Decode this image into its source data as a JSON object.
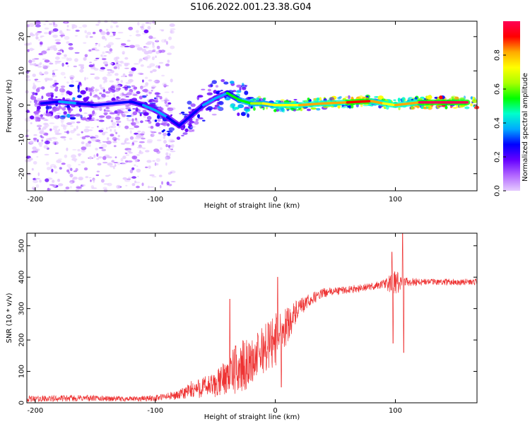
{
  "title": "S106.2022.001.23.38.G04",
  "chart_data": [
    {
      "type": "heatmap",
      "xlabel": "Height of straight line (km)",
      "ylabel": "Frequency (Hz)",
      "xlim": [
        -207,
        168
      ],
      "ylim": [
        -25,
        24.5
      ],
      "x_ticks": [
        -200,
        -100,
        0,
        100
      ],
      "y_ticks": [
        -20,
        -10,
        0,
        10,
        20
      ],
      "grid": false,
      "colorbar": {
        "label": "Normalized spectral amplitude",
        "range": [
          0,
          1
        ],
        "ticks": [
          0.0,
          0.2,
          0.4,
          0.6,
          0.8
        ],
        "colormap": [
          "#e6ccff",
          "#b266ff",
          "#6600ff",
          "#0000ff",
          "#00aaff",
          "#00ffcc",
          "#00ff00",
          "#aaff00",
          "#ffff00",
          "#ffaa00",
          "#ff0000",
          "#ff0055"
        ]
      },
      "ridge": [
        {
          "x": -195,
          "y": 0.5,
          "a": 0.25
        },
        {
          "x": -180,
          "y": 1.0,
          "a": 0.35
        },
        {
          "x": -165,
          "y": 0.5,
          "a": 0.4
        },
        {
          "x": -150,
          "y": 0.0,
          "a": 0.2
        },
        {
          "x": -120,
          "y": 1.0,
          "a": 0.3
        },
        {
          "x": -110,
          "y": 0.0,
          "a": 0.35
        },
        {
          "x": -100,
          "y": -1.5,
          "a": 0.35
        },
        {
          "x": -90,
          "y": -3.5,
          "a": 0.35
        },
        {
          "x": -80,
          "y": -6.0,
          "a": 0.3
        },
        {
          "x": -70,
          "y": -3.0,
          "a": 0.3
        },
        {
          "x": -60,
          "y": 0.0,
          "a": 0.35
        },
        {
          "x": -50,
          "y": 2.0,
          "a": 0.35
        },
        {
          "x": -40,
          "y": 3.5,
          "a": 0.45
        },
        {
          "x": -30,
          "y": 1.5,
          "a": 0.55
        },
        {
          "x": -20,
          "y": 0.5,
          "a": 0.6
        },
        {
          "x": -10,
          "y": 0.5,
          "a": 0.65
        },
        {
          "x": 0,
          "y": 0.0,
          "a": 0.7
        },
        {
          "x": 20,
          "y": 0.0,
          "a": 0.75
        },
        {
          "x": 40,
          "y": 0.5,
          "a": 0.8
        },
        {
          "x": 60,
          "y": 0.8,
          "a": 0.85
        },
        {
          "x": 80,
          "y": 1.2,
          "a": 0.9
        },
        {
          "x": 90,
          "y": 0.5,
          "a": 0.7
        },
        {
          "x": 100,
          "y": 0.0,
          "a": 0.75
        },
        {
          "x": 120,
          "y": 0.8,
          "a": 0.9
        },
        {
          "x": 140,
          "y": 0.8,
          "a": 0.95
        },
        {
          "x": 160,
          "y": 0.8,
          "a": 0.95
        }
      ]
    },
    {
      "type": "line",
      "xlabel": "Height of straight line (km)",
      "ylabel": "SNR (10 * v/v)",
      "xlim": [
        -207,
        168
      ],
      "ylim": [
        0,
        540
      ],
      "x_ticks": [
        -200,
        -100,
        0,
        100
      ],
      "y_ticks": [
        0,
        100,
        200,
        300,
        400,
        500
      ],
      "grid": false,
      "series": [
        {
          "color": "#ee3333",
          "envelope": [
            {
              "x": -207,
              "y": 12,
              "noise": 10
            },
            {
              "x": -160,
              "y": 15,
              "noise": 10
            },
            {
              "x": -120,
              "y": 12,
              "noise": 8
            },
            {
              "x": -100,
              "y": 15,
              "noise": 10
            },
            {
              "x": -80,
              "y": 25,
              "noise": 15
            },
            {
              "x": -70,
              "y": 40,
              "noise": 30
            },
            {
              "x": -60,
              "y": 50,
              "noise": 35
            },
            {
              "x": -50,
              "y": 55,
              "noise": 40
            },
            {
              "x": -40,
              "y": 90,
              "noise": 60
            },
            {
              "x": -30,
              "y": 110,
              "noise": 90
            },
            {
              "x": -20,
              "y": 130,
              "noise": 70
            },
            {
              "x": -10,
              "y": 170,
              "noise": 80
            },
            {
              "x": 0,
              "y": 200,
              "noise": 90
            },
            {
              "x": 10,
              "y": 250,
              "noise": 60
            },
            {
              "x": 20,
              "y": 300,
              "noise": 30
            },
            {
              "x": 30,
              "y": 330,
              "noise": 20
            },
            {
              "x": 40,
              "y": 350,
              "noise": 15
            },
            {
              "x": 60,
              "y": 360,
              "noise": 12
            },
            {
              "x": 80,
              "y": 370,
              "noise": 12
            },
            {
              "x": 90,
              "y": 378,
              "noise": 15
            },
            {
              "x": 100,
              "y": 380,
              "noise": 40
            },
            {
              "x": 110,
              "y": 385,
              "noise": 15
            },
            {
              "x": 130,
              "y": 385,
              "noise": 10
            },
            {
              "x": 168,
              "y": 385,
              "noise": 10
            }
          ],
          "spikes": [
            {
              "x": -38,
              "y": 330
            },
            {
              "x": -36,
              "y": 60
            },
            {
              "x": 2,
              "y": 400
            },
            {
              "x": 5,
              "y": 50
            },
            {
              "x": 97,
              "y": 480
            },
            {
              "x": 98,
              "y": 190
            },
            {
              "x": 106,
              "y": 540
            },
            {
              "x": 107,
              "y": 160
            }
          ]
        }
      ]
    }
  ]
}
